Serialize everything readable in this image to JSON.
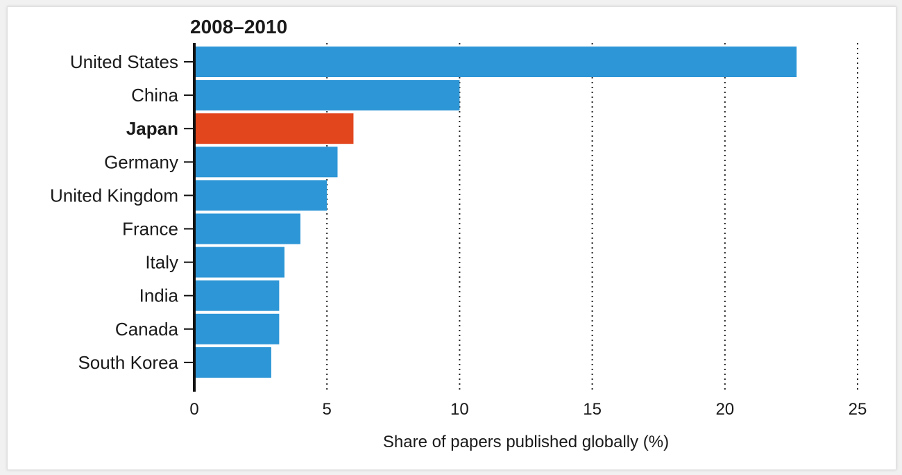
{
  "chart_data": {
    "type": "bar",
    "orientation": "horizontal",
    "title": "2008–2010",
    "xlabel": "Share of papers published globally (%)",
    "ylabel": "",
    "xlim": [
      0,
      25
    ],
    "xticks": [
      0,
      5,
      10,
      15,
      20,
      25
    ],
    "grid": "vertical-dotted",
    "categories": [
      "United States",
      "China",
      "Japan",
      "Germany",
      "United Kingdom",
      "France",
      "Italy",
      "India",
      "Canada",
      "South Korea"
    ],
    "values": [
      22.7,
      10.0,
      6.0,
      5.4,
      5.0,
      4.0,
      3.4,
      3.2,
      3.2,
      2.9
    ],
    "highlight": "Japan",
    "colors": {
      "bar": "#2d96d6",
      "highlight": "#e2461d",
      "axis": "#111111",
      "grid": "#222222"
    }
  }
}
